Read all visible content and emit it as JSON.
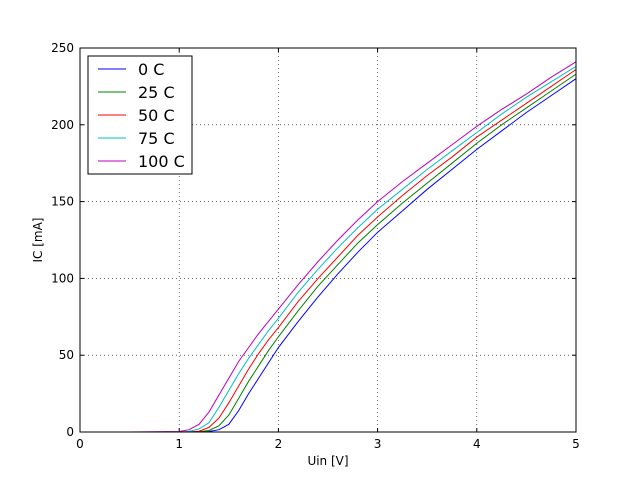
{
  "chart_data": {
    "type": "line",
    "xlabel": "Uin [V]",
    "ylabel": "IC [mA]",
    "x": [
      0,
      0.5,
      1.0,
      1.1,
      1.2,
      1.3,
      1.4,
      1.5,
      1.6,
      1.7,
      1.8,
      1.9,
      2.0,
      2.2,
      2.4,
      2.6,
      2.8,
      3.0,
      3.25,
      3.5,
      3.75,
      4.0,
      4.25,
      4.5,
      4.75,
      5.0
    ],
    "series": [
      {
        "name": "0 C",
        "color": "#0000ff",
        "values": [
          0,
          0,
          0,
          0,
          0,
          0.3,
          1.5,
          5,
          14,
          25,
          35,
          45,
          55,
          72,
          88,
          103,
          117,
          130,
          144,
          158,
          171,
          184,
          196,
          208,
          219,
          230
        ]
      },
      {
        "name": "25 C",
        "color": "#008000",
        "values": [
          0,
          0,
          0,
          0,
          0.2,
          1,
          4,
          11,
          22,
          33,
          43,
          53,
          62,
          79,
          95,
          109,
          123,
          135,
          149,
          162,
          175,
          188,
          200,
          211,
          222,
          233
        ]
      },
      {
        "name": "50 C",
        "color": "#ff0000",
        "values": [
          0,
          0,
          0,
          0.1,
          0.5,
          3,
          9,
          19,
          30,
          41,
          51,
          60,
          68,
          85,
          100,
          114,
          128,
          140,
          154,
          167,
          179,
          192,
          203,
          214,
          225,
          236
        ]
      },
      {
        "name": "75 C",
        "color": "#00bfbf",
        "values": [
          0,
          0,
          0.1,
          0.4,
          2,
          6,
          16,
          27,
          38,
          48,
          57,
          66,
          74,
          91,
          106,
          120,
          133,
          145,
          158,
          171,
          183,
          195,
          207,
          218,
          228,
          238
        ]
      },
      {
        "name": "100 C",
        "color": "#bf00bf",
        "values": [
          0,
          0,
          0.3,
          1.5,
          5,
          13,
          24,
          35,
          46,
          55,
          64,
          72,
          80,
          96,
          111,
          125,
          138,
          150,
          163,
          175,
          187,
          199,
          210,
          220,
          231,
          241
        ]
      }
    ],
    "xlim": [
      0,
      5
    ],
    "xticks": [
      0,
      1,
      2,
      3,
      4,
      5
    ],
    "ylim": [
      0,
      250
    ],
    "yticks": [
      0,
      50,
      100,
      150,
      200,
      250
    ],
    "grid": true,
    "legend": "upper left"
  }
}
